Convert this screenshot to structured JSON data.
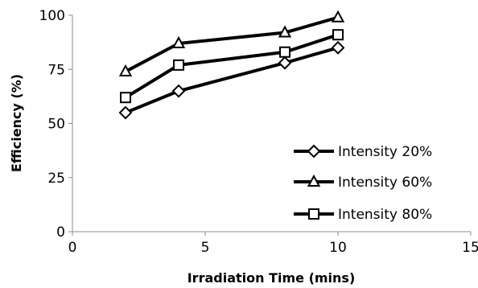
{
  "chart_data": {
    "type": "line",
    "title": "",
    "xlabel": "Irradiation Time (mins)",
    "ylabel": "Efficiency (%)",
    "xlim": [
      0,
      15
    ],
    "ylim": [
      0,
      100
    ],
    "xticks": [
      0,
      5,
      10,
      15
    ],
    "yticks": [
      0,
      25,
      50,
      75,
      100
    ],
    "grid": false,
    "legend_position": "bottom-right",
    "x": [
      2,
      4,
      8,
      10
    ],
    "series": [
      {
        "name": "Intensity 20%",
        "marker": "diamond",
        "values": [
          55,
          65,
          78,
          85
        ]
      },
      {
        "name": "Intensity 60%",
        "marker": "triangle",
        "values": [
          74,
          87,
          92,
          99
        ]
      },
      {
        "name": "Intensity 80%",
        "marker": "square",
        "values": [
          62,
          77,
          83,
          91
        ]
      }
    ],
    "line_color": "#000000"
  }
}
